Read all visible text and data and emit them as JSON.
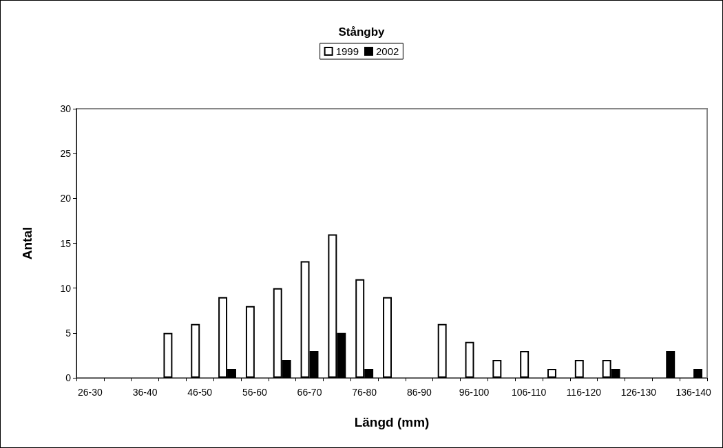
{
  "chart_data": {
    "type": "bar",
    "title": "Stångby",
    "xlabel": "Längd (mm)",
    "ylabel": "Antal",
    "categories": [
      "26-30",
      null,
      "36-40",
      null,
      "46-50",
      null,
      "56-60",
      null,
      "66-70",
      null,
      "76-80",
      null,
      "86-90",
      null,
      "96-100",
      null,
      "106-110",
      null,
      "116-120",
      null,
      "126-130",
      null,
      "136-140"
    ],
    "series": [
      {
        "name": "1999",
        "color": "#ffffff",
        "values": [
          0,
          0,
          0,
          5,
          6,
          9,
          8,
          10,
          13,
          16,
          11,
          9,
          0,
          6,
          4,
          2,
          3,
          1,
          2,
          2,
          0,
          0,
          0
        ]
      },
      {
        "name": "2002",
        "color": "#000000",
        "values": [
          0,
          0,
          0,
          0,
          0,
          1,
          0,
          2,
          3,
          5,
          1,
          0,
          0,
          0,
          0,
          0,
          0,
          0,
          0,
          1,
          0,
          3,
          1
        ]
      }
    ],
    "ylim": [
      0,
      30
    ],
    "yticks": [
      0,
      5,
      10,
      15,
      20,
      25,
      30
    ],
    "grid": false,
    "legend": "top"
  }
}
